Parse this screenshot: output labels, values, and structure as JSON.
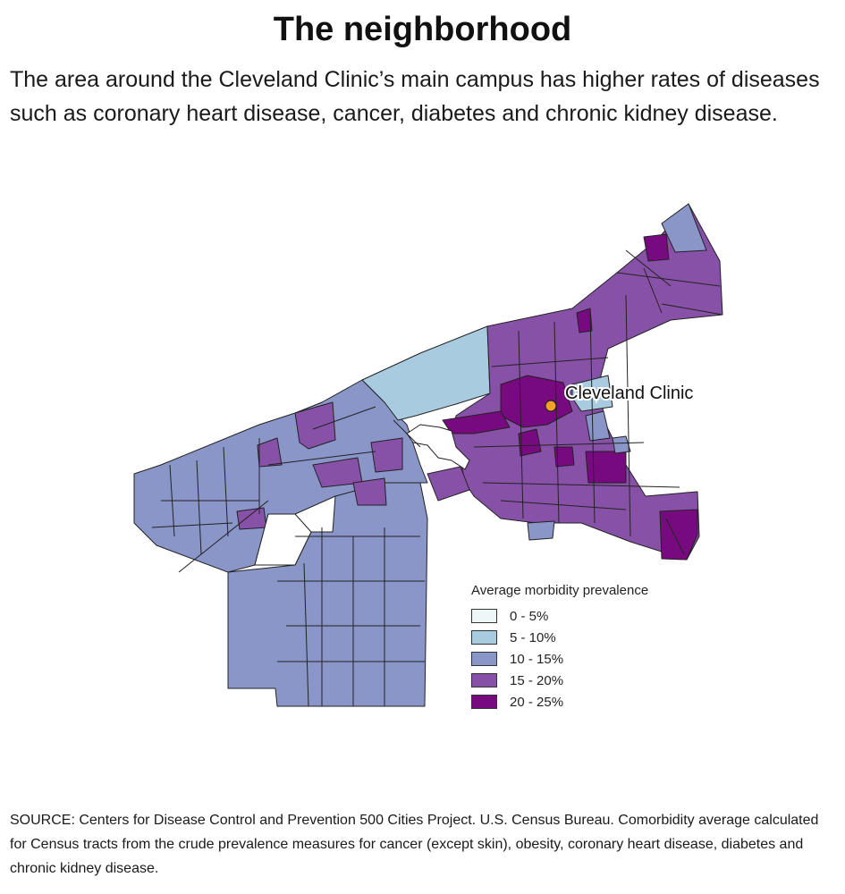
{
  "header": {
    "title": "The neighborhood",
    "subtitle": "The area around the Cleveland Clinic’s main campus has higher rates of diseases such as coronary heart disease, cancer, diabetes and chronic kidney disease."
  },
  "map": {
    "marker_label": "Cleveland Clinic",
    "colors": {
      "bin_0_5": "#eef6f7",
      "bin_5_10": "#a9cbe0",
      "bin_10_15": "#8a96c8",
      "bin_15_20": "#8851a8",
      "bin_20_25": "#780a7f",
      "marker": "#f5a125",
      "border": "#222222"
    }
  },
  "legend": {
    "title": "Average morbidity prevalence",
    "items": [
      {
        "label": "0 - 5%",
        "color": "#eef6f7"
      },
      {
        "label": "5 - 10%",
        "color": "#a9cbe0"
      },
      {
        "label": "10 - 15%",
        "color": "#8a96c8"
      },
      {
        "label": "15 - 20%",
        "color": "#8851a8"
      },
      {
        "label": "20 - 25%",
        "color": "#780a7f"
      }
    ]
  },
  "source": "SOURCE: Centers for Disease Control and Prevention 500 Cities Project. U.S. Census Bureau. Comorbidity average calculated for Census tracts from the crude prevalence measures for cancer (except skin), obesity, coronary heart disease, diabetes and chronic kidney disease."
}
